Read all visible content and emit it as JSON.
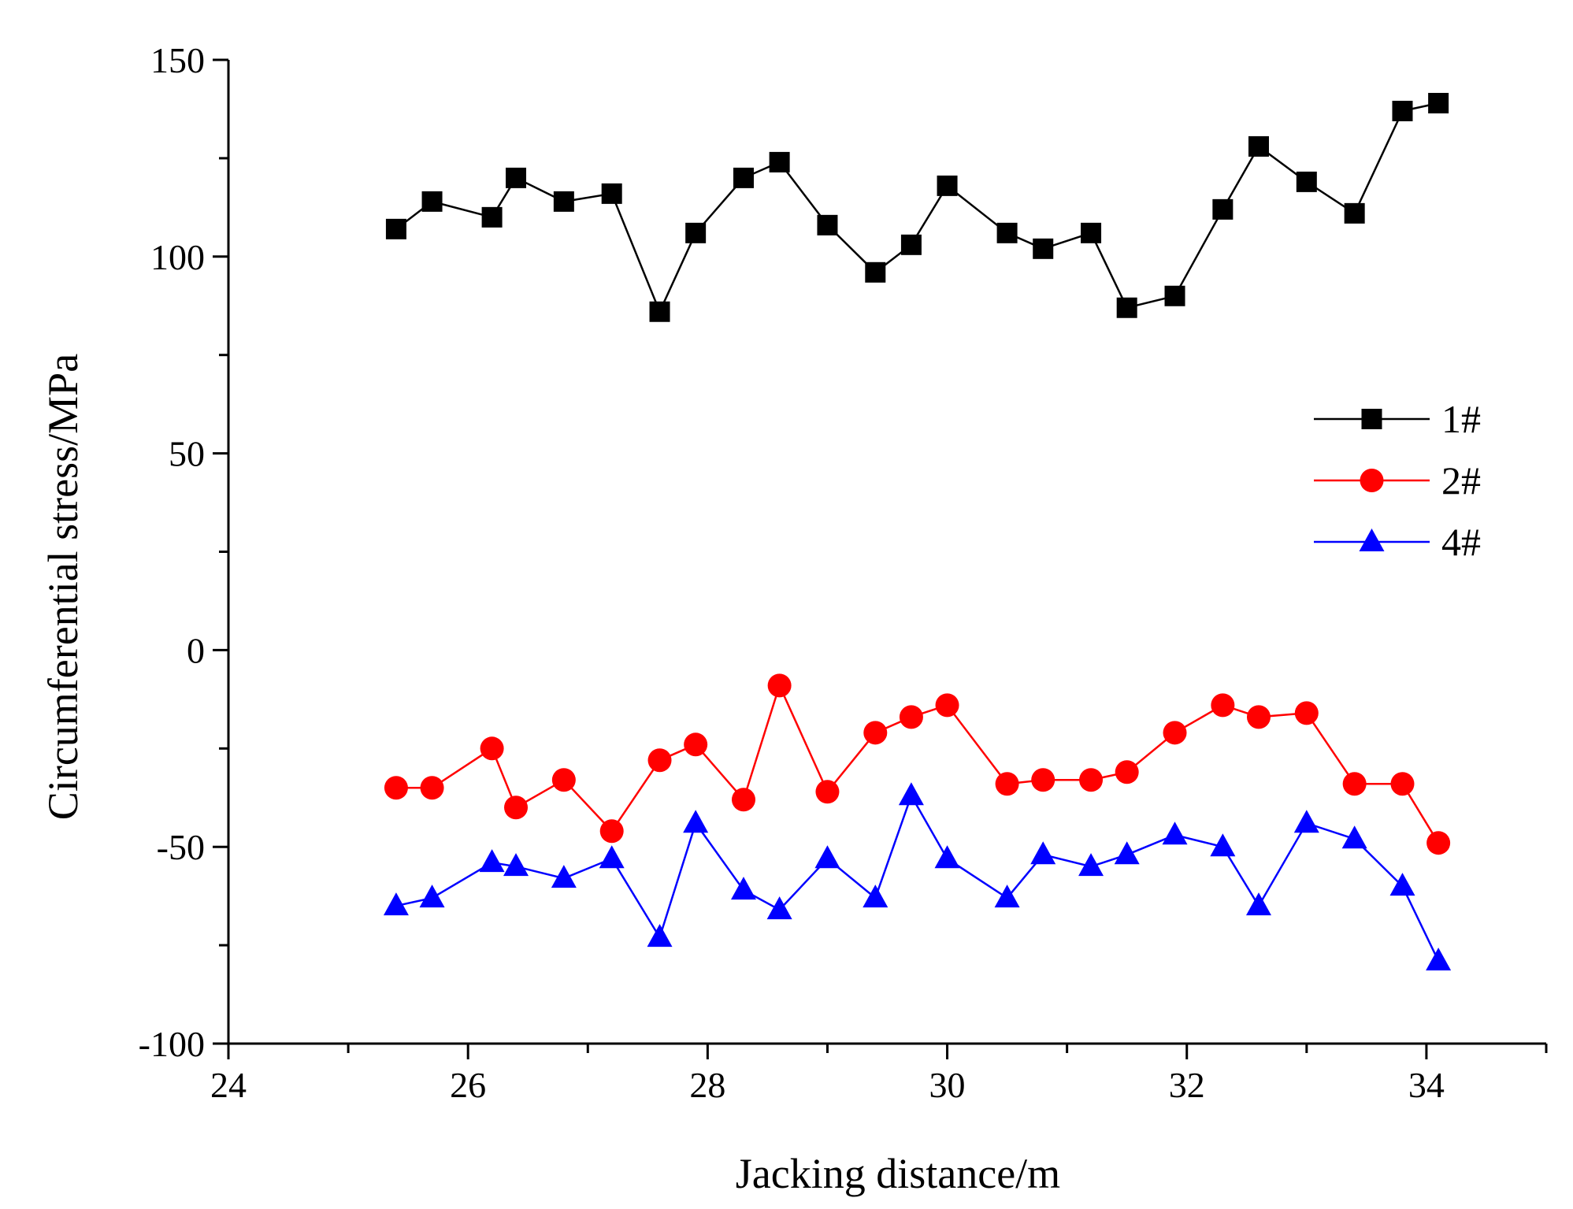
{
  "chart_data": {
    "type": "line",
    "title": "",
    "xlabel": "Jacking distance/m",
    "ylabel": "Circumferential stress/MPa",
    "xlim": [
      24,
      35
    ],
    "ylim": [
      -100,
      150
    ],
    "x_ticks": [
      24,
      26,
      28,
      30,
      32,
      34
    ],
    "y_ticks": [
      -100,
      -50,
      0,
      50,
      100,
      150
    ],
    "x_tick_labels": [
      "24",
      "26",
      "28",
      "30",
      "32",
      "34"
    ],
    "y_tick_labels": [
      "-100",
      "-50",
      "0",
      "50",
      "100",
      "150"
    ],
    "legend_position": "right",
    "x": [
      25.4,
      25.7,
      26.2,
      26.4,
      26.8,
      27.2,
      27.6,
      27.9,
      28.3,
      28.6,
      29.0,
      29.4,
      29.7,
      30.0,
      30.5,
      30.8,
      31.2,
      31.5,
      31.9,
      32.3,
      32.6,
      33.0,
      33.4,
      33.8,
      34.1
    ],
    "series": [
      {
        "name": "1#",
        "color": "#000000",
        "marker": "square",
        "values": [
          107,
          114,
          110,
          120,
          114,
          116,
          86,
          106,
          120,
          124,
          108,
          96,
          103,
          118,
          106,
          102,
          106,
          87,
          90,
          112,
          128,
          119,
          111,
          137,
          139
        ]
      },
      {
        "name": "2#",
        "color": "#ff0000",
        "marker": "circle",
        "values": [
          -35,
          -35,
          -25,
          -40,
          -33,
          -46,
          -28,
          -24,
          -38,
          -9,
          -36,
          -21,
          -17,
          -14,
          -34,
          -33,
          -33,
          -31,
          -21,
          -14,
          -17,
          -16,
          -34,
          -34,
          -49
        ]
      },
      {
        "name": "4#",
        "color": "#0000ff",
        "marker": "triangle",
        "values": [
          -65,
          -63,
          -54,
          -55,
          -58,
          -53,
          -73,
          -44,
          -61,
          -66,
          -53,
          -63,
          -37,
          -53,
          -63,
          -52,
          -55,
          -52,
          -47,
          -50,
          -65,
          -44,
          -48,
          -60,
          -79
        ]
      }
    ]
  }
}
